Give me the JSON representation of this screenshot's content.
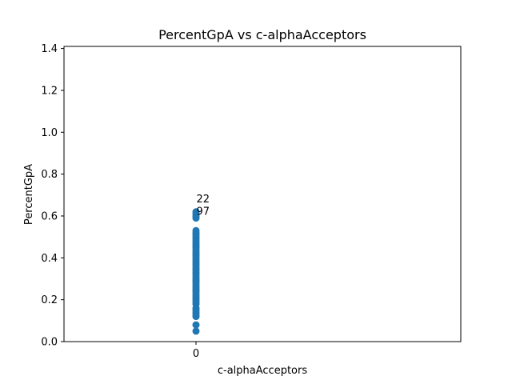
{
  "chart_data": {
    "type": "scatter",
    "title": "PercentGpA vs c-alphaAcceptors",
    "xlabel": "c-alphaAcceptors",
    "ylabel": "PercentGpA",
    "xlim": [
      -1,
      2
    ],
    "ylim": [
      0,
      1.41
    ],
    "x_ticks": [
      "0"
    ],
    "y_ticks": [
      "0.0",
      "0.2",
      "0.4",
      "0.6",
      "0.8",
      "1.0",
      "1.2",
      "1.4"
    ],
    "y_tick_values": [
      0,
      0.2,
      0.4,
      0.6,
      0.8,
      1.0,
      1.2,
      1.4
    ],
    "grid": false,
    "point_color": "#1f77b4",
    "series": [
      {
        "x": [
          0,
          0,
          0,
          0,
          0,
          0,
          0,
          0,
          0,
          0,
          0,
          0,
          0,
          0,
          0,
          0,
          0,
          0,
          0,
          0,
          0,
          0,
          0,
          0,
          0,
          0,
          0,
          0,
          0,
          0,
          0,
          0,
          0,
          0,
          0,
          0,
          0,
          0,
          0,
          0,
          0,
          0,
          0,
          0,
          0,
          0,
          0
        ],
        "y": [
          0.05,
          0.08,
          0.12,
          0.13,
          0.15,
          0.16,
          0.18,
          0.2,
          0.21,
          0.22,
          0.24,
          0.25,
          0.26,
          0.27,
          0.28,
          0.29,
          0.3,
          0.32,
          0.33,
          0.34,
          0.35,
          0.36,
          0.37,
          0.38,
          0.39,
          0.4,
          0.41,
          0.42,
          0.43,
          0.44,
          0.45,
          0.46,
          0.47,
          0.48,
          0.49,
          0.5,
          0.51,
          0.52,
          0.53,
          0.59,
          0.6,
          0.61,
          0.62,
          0.31,
          0.23,
          0.19,
          0.14
        ]
      }
    ],
    "annotations": [
      {
        "text": "22",
        "x": 0,
        "y": 0.68,
        "color": "#cc0000"
      },
      {
        "text": "97",
        "x": 0,
        "y": 0.62,
        "color": "#000000"
      }
    ]
  }
}
